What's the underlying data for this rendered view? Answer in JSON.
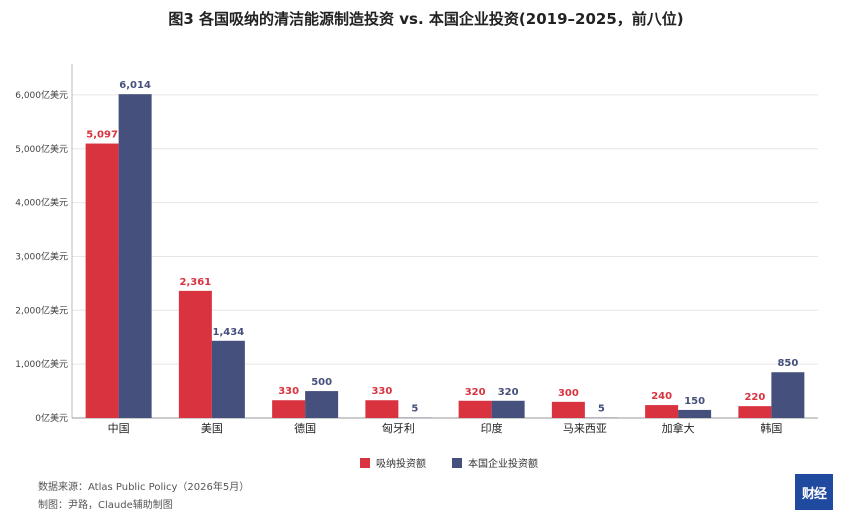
{
  "title": "图3  各国吸纳的清洁能源制造投资 vs. 本国企业投资(2019–2025，前八位)",
  "chart_data": {
    "type": "bar",
    "title": "图3  各国吸纳的清洁能源制造投资 vs. 本国企业投资(2019–2025，前八位)",
    "categories": [
      "中国",
      "美国",
      "德国",
      "匈牙利",
      "印度",
      "马来西亚",
      "加拿大",
      "韩国"
    ],
    "series": [
      {
        "name": "吸纳投资额",
        "color": "#d9333f",
        "values": [
          5097,
          2361,
          330,
          330,
          320,
          300,
          240,
          220
        ]
      },
      {
        "name": "本国企业投资额",
        "color": "#46507c",
        "values": [
          6014,
          1434,
          500,
          5,
          320,
          5,
          150,
          850
        ]
      }
    ],
    "ylim": [
      0,
      6500
    ],
    "yticks": [
      0,
      1000,
      2000,
      3000,
      4000,
      5000,
      6000
    ],
    "ytick_labels": [
      "0亿美元",
      "1,000亿美元",
      "2,000亿美元",
      "3,000亿美元",
      "4,000亿美元",
      "5,000亿美元",
      "6,000亿美元"
    ],
    "grid": true,
    "legend_position": "bottom-center"
  },
  "footer": {
    "source": "数据来源：Atlas Public Policy（2026年5月）",
    "credit": "制图：尹路，Claude辅助制图"
  },
  "logo_text": "财经"
}
